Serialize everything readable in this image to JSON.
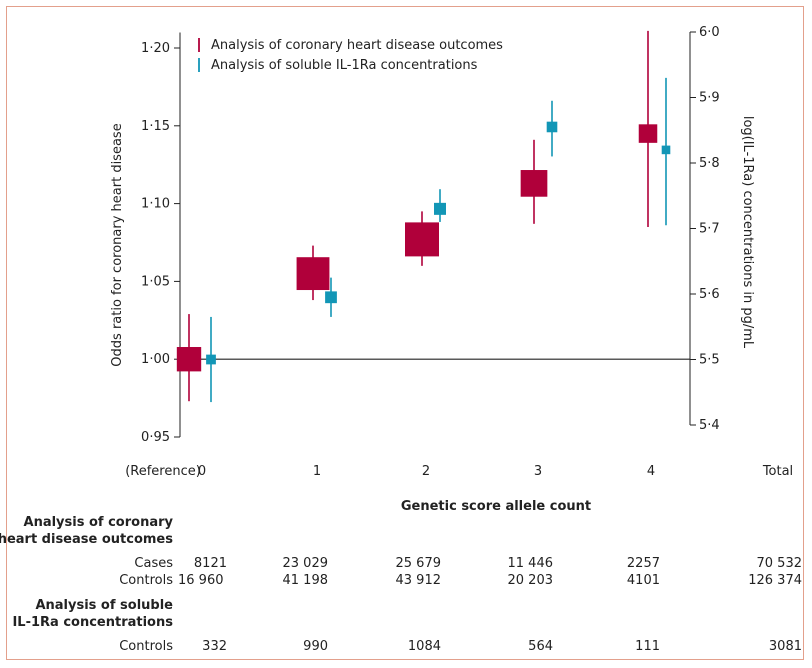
{
  "chart_data": {
    "type": "scatter",
    "x_label": "Genetic score allele count",
    "x_ticks": [
      "(Reference)",
      "0",
      "1",
      "2",
      "3",
      "4",
      "Total"
    ],
    "categories": [
      "0",
      "1",
      "2",
      "3",
      "4"
    ],
    "y_left": {
      "label": "Odds ratio for coronary heart disease",
      "ylim": [
        0.95,
        1.22
      ],
      "ticks": [
        "0·95",
        "1·00",
        "1·05",
        "1·10",
        "1·15",
        "1·20"
      ]
    },
    "y_right": {
      "label": "log(IL-1Ra) concentrations in pg/mL",
      "ylim": [
        5.4,
        6.0
      ],
      "ticks": [
        "5·4",
        "5·5",
        "5·6",
        "5·7",
        "5·8",
        "5·9",
        "6·0"
      ]
    },
    "reference_line": 1.0,
    "legend_position": "top-left",
    "series": [
      {
        "name": "Analysis of coronary heart disease outcomes",
        "axis": "left",
        "color": "#b0003a",
        "values": [
          1.0,
          1.055,
          1.077,
          1.113,
          1.145
        ],
        "ci_low": [
          0.973,
          1.038,
          1.06,
          1.087,
          1.085
        ],
        "ci_high": [
          1.029,
          1.073,
          1.095,
          1.141,
          1.211
        ],
        "weights": [
          8121,
          23029,
          25679,
          11446,
          2257
        ]
      },
      {
        "name": "Analysis of soluble IL-1Ra concentrations",
        "axis": "right",
        "color": "#1296b6",
        "values": [
          5.5,
          5.595,
          5.73,
          5.855,
          5.82
        ],
        "ci_low": [
          5.435,
          5.565,
          5.71,
          5.81,
          5.705
        ],
        "ci_high": [
          5.565,
          5.625,
          5.76,
          5.895,
          5.93
        ],
        "weights": [
          332,
          990,
          1084,
          564,
          111
        ]
      }
    ]
  },
  "table": {
    "chd_header": [
      "Analysis of coronary",
      "heart disease outcomes"
    ],
    "il_header": [
      "Analysis of soluble",
      "IL-1Ra concentrations"
    ],
    "rows": [
      {
        "label": "Cases",
        "values": [
          "8121",
          "23 029",
          "25 679",
          "11 446",
          "2257",
          "70 532"
        ]
      },
      {
        "label": "Controls",
        "values": [
          "16 960",
          "41 198",
          "43 912",
          "20 203",
          "4101",
          "126 374"
        ]
      },
      {
        "label": "Controls",
        "values": [
          "332",
          "990",
          "1084",
          "564",
          "111",
          "3081"
        ]
      }
    ]
  },
  "colors": {
    "chd": "#b0003a",
    "il1ra": "#1296b6",
    "axis": "#222222",
    "frame": "#e3a08c"
  }
}
